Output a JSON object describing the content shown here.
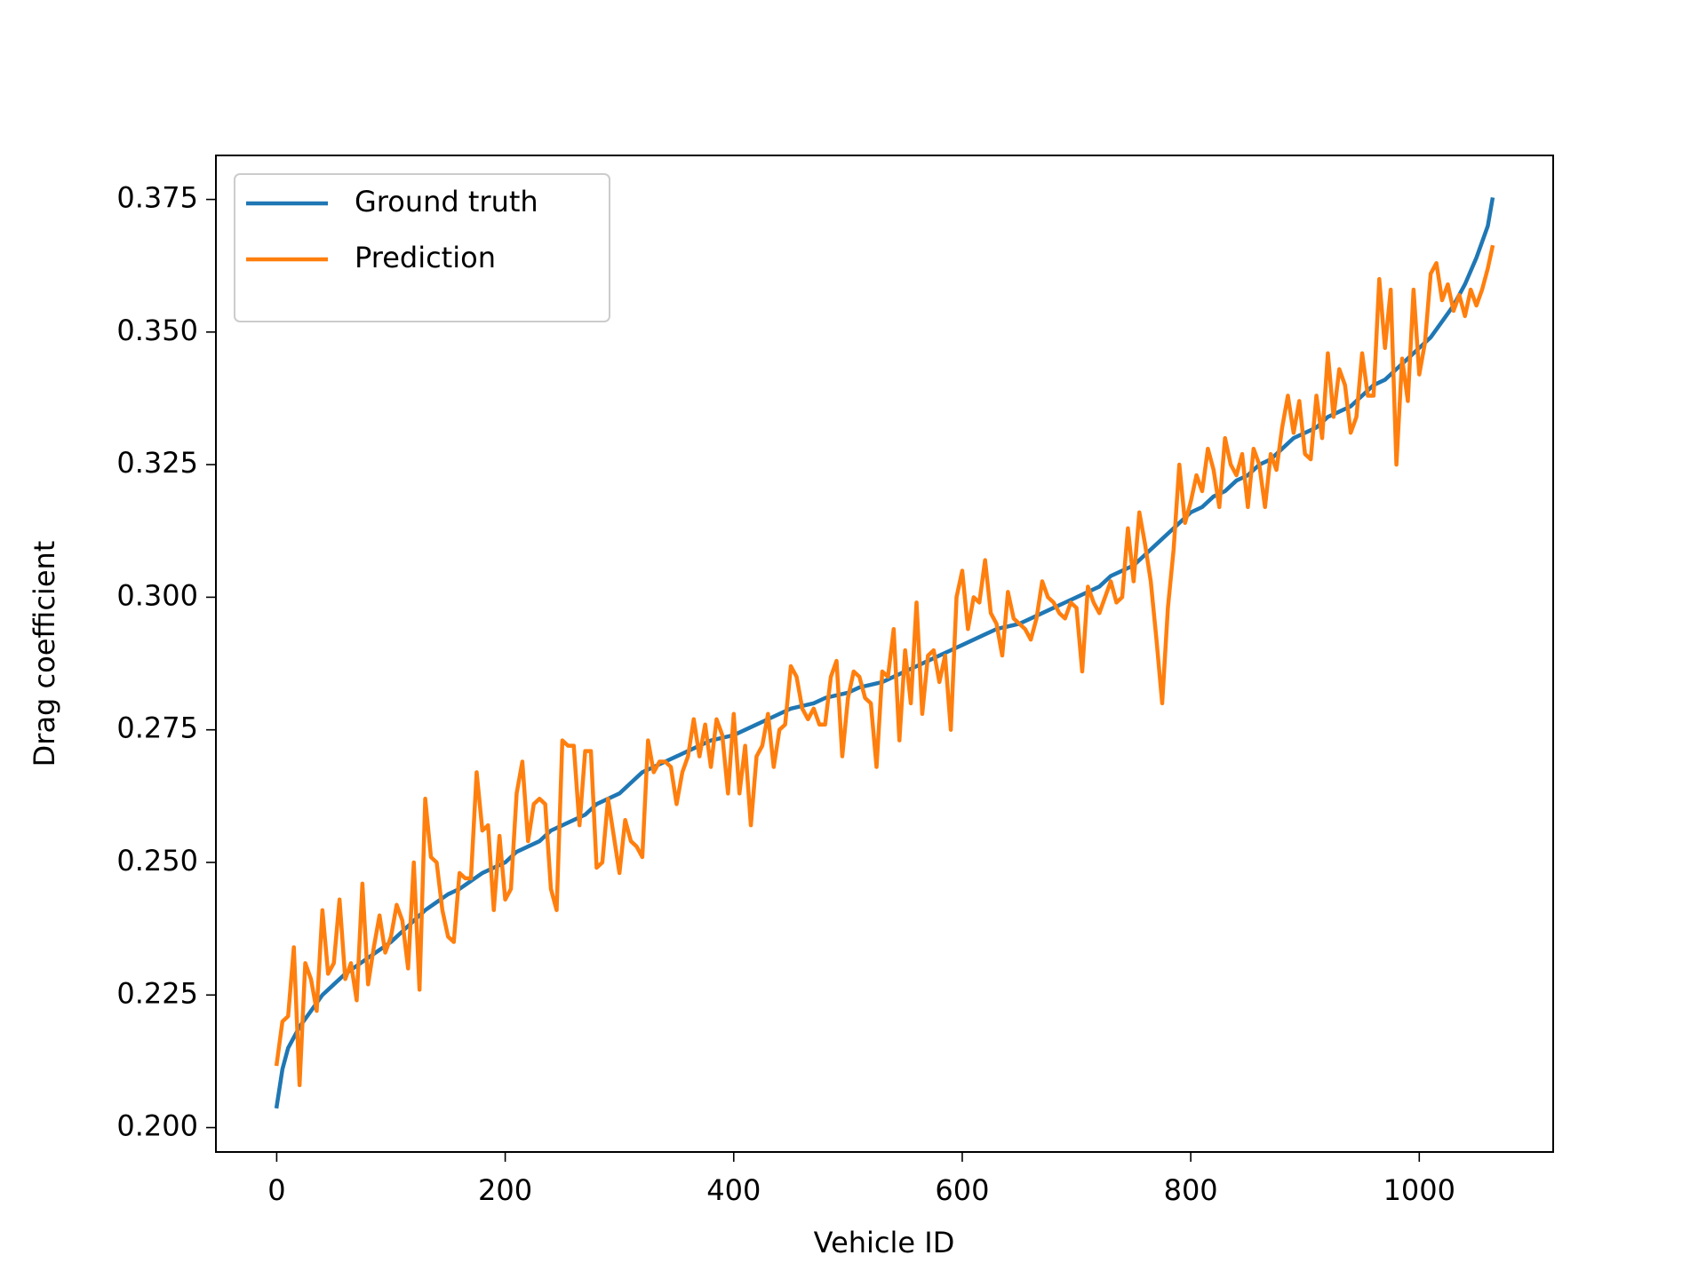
{
  "chart_data": {
    "type": "line",
    "x_label": "Vehicle ID",
    "y_label": "Drag coefficient",
    "xlim": [
      -53.2,
      1117.2
    ],
    "xticks": [
      0,
      200,
      400,
      600,
      800,
      1000
    ],
    "ylim": [
      0.1954,
      0.3833
    ],
    "yticks": [
      {
        "value": 0.2,
        "label": "0.200"
      },
      {
        "value": 0.225,
        "label": "0.225"
      },
      {
        "value": 0.25,
        "label": "0.250"
      },
      {
        "value": 0.275,
        "label": "0.275"
      },
      {
        "value": 0.3,
        "label": "0.300"
      },
      {
        "value": 0.325,
        "label": "0.325"
      },
      {
        "value": 0.35,
        "label": "0.350"
      },
      {
        "value": 0.375,
        "label": "0.375"
      }
    ],
    "grid": false,
    "legend": "upper left",
    "series": [
      {
        "name": "Ground truth",
        "color": "#1f77b4",
        "x": [
          0,
          5,
          10,
          20,
          30,
          40,
          50,
          60,
          70,
          80,
          90,
          100,
          110,
          120,
          130,
          140,
          150,
          160,
          170,
          180,
          190,
          200,
          210,
          220,
          230,
          240,
          250,
          260,
          270,
          280,
          290,
          300,
          310,
          320,
          330,
          340,
          350,
          360,
          370,
          380,
          390,
          400,
          410,
          420,
          430,
          440,
          450,
          460,
          470,
          480,
          490,
          500,
          510,
          520,
          530,
          540,
          550,
          560,
          570,
          580,
          590,
          600,
          610,
          620,
          630,
          640,
          650,
          660,
          670,
          680,
          690,
          700,
          710,
          720,
          730,
          740,
          750,
          760,
          770,
          780,
          790,
          800,
          810,
          820,
          830,
          840,
          850,
          860,
          870,
          880,
          890,
          900,
          910,
          920,
          930,
          940,
          950,
          960,
          970,
          980,
          990,
          1000,
          1010,
          1020,
          1030,
          1040,
          1050,
          1060,
          1064
        ],
        "values": [
          0.204,
          0.211,
          0.215,
          0.219,
          0.222,
          0.225,
          0.227,
          0.229,
          0.2305,
          0.232,
          0.2335,
          0.235,
          0.237,
          0.239,
          0.241,
          0.2425,
          0.244,
          0.245,
          0.2465,
          0.248,
          0.249,
          0.25,
          0.252,
          0.253,
          0.254,
          0.256,
          0.257,
          0.258,
          0.259,
          0.261,
          0.262,
          0.263,
          0.265,
          0.267,
          0.268,
          0.269,
          0.27,
          0.271,
          0.272,
          0.273,
          0.2735,
          0.274,
          0.275,
          0.276,
          0.277,
          0.278,
          0.279,
          0.2795,
          0.28,
          0.281,
          0.2815,
          0.282,
          0.283,
          0.2835,
          0.284,
          0.285,
          0.286,
          0.287,
          0.288,
          0.289,
          0.29,
          0.291,
          0.292,
          0.293,
          0.294,
          0.2945,
          0.295,
          0.296,
          0.297,
          0.298,
          0.299,
          0.3,
          0.301,
          0.302,
          0.304,
          0.305,
          0.306,
          0.308,
          0.31,
          0.312,
          0.314,
          0.316,
          0.317,
          0.319,
          0.32,
          0.322,
          0.323,
          0.325,
          0.326,
          0.328,
          0.33,
          0.331,
          0.332,
          0.334,
          0.335,
          0.336,
          0.338,
          0.34,
          0.341,
          0.343,
          0.345,
          0.347,
          0.349,
          0.352,
          0.355,
          0.359,
          0.364,
          0.37,
          0.375
        ]
      },
      {
        "name": "Prediction",
        "color": "#ff7f0e",
        "x": [
          0,
          5,
          10,
          15,
          20,
          25,
          30,
          35,
          40,
          45,
          50,
          55,
          60,
          65,
          70,
          75,
          80,
          85,
          90,
          95,
          100,
          105,
          110,
          115,
          120,
          125,
          130,
          135,
          140,
          145,
          150,
          155,
          160,
          165,
          170,
          175,
          180,
          185,
          190,
          195,
          200,
          205,
          210,
          215,
          220,
          225,
          230,
          235,
          240,
          245,
          250,
          255,
          260,
          265,
          270,
          275,
          280,
          285,
          290,
          295,
          300,
          305,
          310,
          315,
          320,
          325,
          330,
          335,
          340,
          345,
          350,
          355,
          360,
          365,
          370,
          375,
          380,
          385,
          390,
          395,
          400,
          405,
          410,
          415,
          420,
          425,
          430,
          435,
          440,
          445,
          450,
          455,
          460,
          465,
          470,
          475,
          480,
          485,
          490,
          495,
          500,
          505,
          510,
          515,
          520,
          525,
          530,
          535,
          540,
          545,
          550,
          555,
          560,
          565,
          570,
          575,
          580,
          585,
          590,
          595,
          600,
          605,
          610,
          615,
          620,
          625,
          630,
          635,
          640,
          645,
          650,
          655,
          660,
          665,
          670,
          675,
          680,
          685,
          690,
          695,
          700,
          705,
          710,
          715,
          720,
          725,
          730,
          735,
          740,
          745,
          750,
          755,
          760,
          765,
          770,
          775,
          780,
          785,
          790,
          795,
          800,
          805,
          810,
          815,
          820,
          825,
          830,
          835,
          840,
          845,
          850,
          855,
          860,
          865,
          870,
          875,
          880,
          885,
          890,
          895,
          900,
          905,
          910,
          915,
          920,
          925,
          930,
          935,
          940,
          945,
          950,
          955,
          960,
          965,
          970,
          975,
          980,
          985,
          990,
          995,
          1000,
          1005,
          1010,
          1015,
          1020,
          1025,
          1030,
          1035,
          1040,
          1045,
          1050,
          1055,
          1060,
          1064
        ],
        "values": [
          0.212,
          0.22,
          0.221,
          0.234,
          0.208,
          0.231,
          0.228,
          0.222,
          0.241,
          0.229,
          0.231,
          0.243,
          0.228,
          0.231,
          0.224,
          0.246,
          0.227,
          0.234,
          0.24,
          0.233,
          0.236,
          0.242,
          0.239,
          0.23,
          0.25,
          0.226,
          0.262,
          0.251,
          0.25,
          0.241,
          0.236,
          0.235,
          0.248,
          0.247,
          0.247,
          0.267,
          0.256,
          0.257,
          0.241,
          0.255,
          0.243,
          0.245,
          0.263,
          0.269,
          0.254,
          0.261,
          0.262,
          0.261,
          0.245,
          0.241,
          0.273,
          0.272,
          0.272,
          0.257,
          0.271,
          0.271,
          0.249,
          0.25,
          0.262,
          0.255,
          0.248,
          0.258,
          0.254,
          0.253,
          0.251,
          0.273,
          0.267,
          0.269,
          0.269,
          0.268,
          0.261,
          0.267,
          0.27,
          0.277,
          0.27,
          0.276,
          0.268,
          0.277,
          0.274,
          0.263,
          0.278,
          0.263,
          0.272,
          0.257,
          0.27,
          0.272,
          0.278,
          0.268,
          0.275,
          0.276,
          0.287,
          0.285,
          0.279,
          0.277,
          0.279,
          0.276,
          0.276,
          0.285,
          0.288,
          0.27,
          0.281,
          0.286,
          0.285,
          0.281,
          0.28,
          0.268,
          0.286,
          0.285,
          0.294,
          0.273,
          0.29,
          0.28,
          0.299,
          0.278,
          0.289,
          0.29,
          0.284,
          0.289,
          0.275,
          0.3,
          0.305,
          0.294,
          0.3,
          0.299,
          0.307,
          0.297,
          0.295,
          0.289,
          0.301,
          0.296,
          0.295,
          0.294,
          0.292,
          0.296,
          0.303,
          0.3,
          0.299,
          0.297,
          0.296,
          0.299,
          0.298,
          0.286,
          0.302,
          0.299,
          0.297,
          0.3,
          0.303,
          0.299,
          0.3,
          0.313,
          0.303,
          0.316,
          0.31,
          0.303,
          0.292,
          0.28,
          0.298,
          0.309,
          0.325,
          0.314,
          0.318,
          0.323,
          0.32,
          0.328,
          0.324,
          0.317,
          0.33,
          0.325,
          0.323,
          0.327,
          0.317,
          0.328,
          0.325,
          0.317,
          0.327,
          0.324,
          0.332,
          0.338,
          0.331,
          0.337,
          0.327,
          0.326,
          0.338,
          0.33,
          0.346,
          0.334,
          0.343,
          0.34,
          0.331,
          0.334,
          0.346,
          0.338,
          0.338,
          0.36,
          0.347,
          0.358,
          0.325,
          0.345,
          0.337,
          0.358,
          0.342,
          0.348,
          0.361,
          0.363,
          0.356,
          0.359,
          0.354,
          0.357,
          0.353,
          0.358,
          0.355,
          0.358,
          0.362,
          0.366
        ]
      }
    ]
  }
}
